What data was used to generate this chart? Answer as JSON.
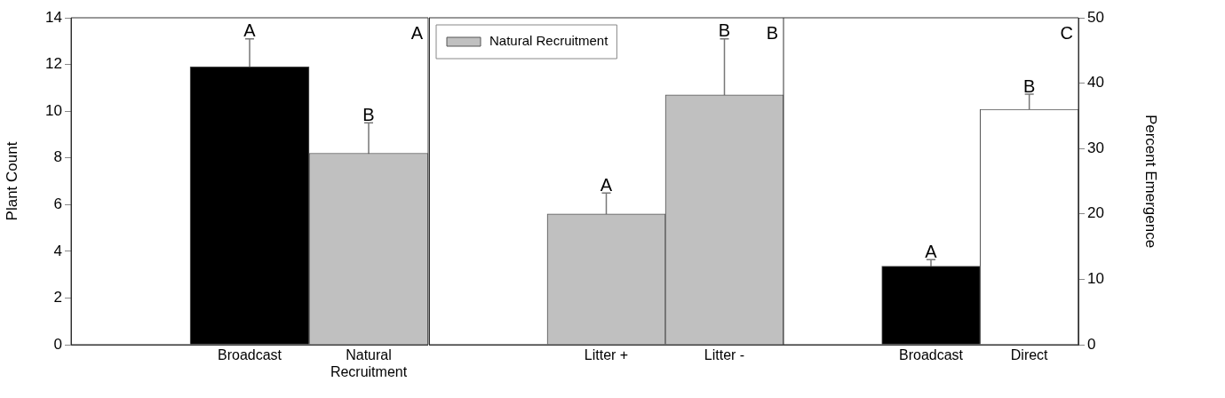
{
  "chart_data": [
    {
      "type": "bar",
      "ylabel": "Plant Count",
      "categories": [
        "Broadcast",
        "Natural Recruitment"
      ],
      "series": [
        {
          "colors": [
            "#000000",
            "#c0c0c0"
          ],
          "values": [
            11.9,
            8.2
          ],
          "errors": [
            1.2,
            1.3
          ]
        }
      ],
      "ylim": [
        0,
        14
      ],
      "yticks": [
        0,
        2,
        4,
        6,
        8,
        10,
        12,
        14
      ],
      "grid": false,
      "annotations": [
        "A",
        {
          "text": "A",
          "x": "Broadcast",
          "y": 13.1
        },
        {
          "text": "B",
          "x": "Natural Recruitment",
          "y": 9.5
        }
      ]
    },
    {
      "type": "bar",
      "categories": [
        "Litter +",
        "Litter -"
      ],
      "series": [
        {
          "name": "Natural Recruitment",
          "color": "#c0c0c0",
          "values": [
            5.6,
            10.7
          ],
          "errors": [
            0.9,
            2.4
          ]
        }
      ],
      "ylim": [
        0,
        14
      ],
      "yticks": [
        0,
        2,
        4,
        6,
        8,
        10,
        12,
        14
      ],
      "tick_labels": "x",
      "grid": false,
      "legend": "top left",
      "annotations": [
        "B",
        {
          "text": "A",
          "x": "Litter +",
          "y": 6.5
        },
        {
          "text": "B",
          "x": "Litter -",
          "y": 13.1
        }
      ]
    },
    {
      "type": "bar",
      "y2label": "Percent Emergence",
      "categories": [
        "Broadcast",
        "Direct"
      ],
      "series": [
        {
          "colors": [
            "#000000",
            "#ffffff"
          ],
          "values": [
            12,
            36
          ],
          "errors": [
            1,
            2.3
          ],
          "axis": "y2"
        }
      ],
      "y2lim": [
        0,
        50
      ],
      "y2ticks": [
        0,
        10,
        20,
        30,
        40,
        50
      ],
      "grid": false,
      "annotations": [
        "C",
        "A",
        "B"
      ]
    }
  ]
}
